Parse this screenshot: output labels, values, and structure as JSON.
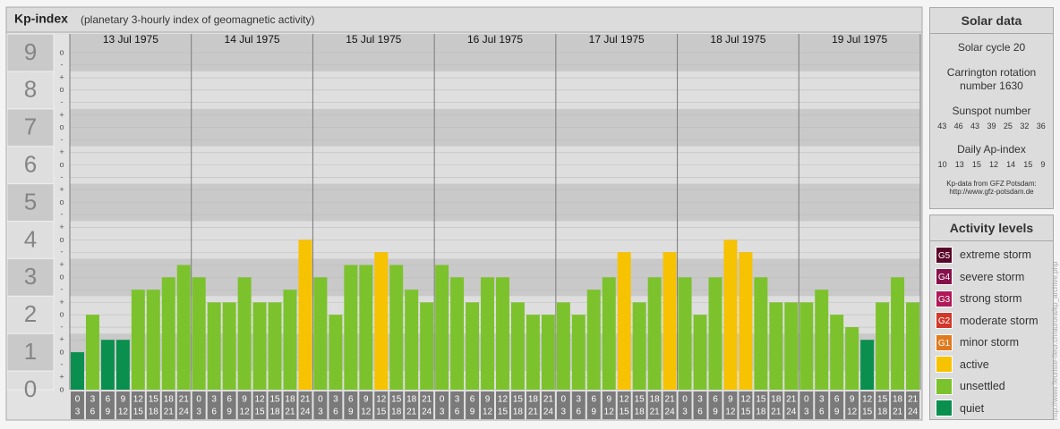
{
  "chart_data": {
    "type": "bar",
    "title": "Kp-index",
    "subtitle": "(planetary 3-hourly index of geomagnetic activity)",
    "days": [
      "13 Jul 1975",
      "14 Jul 1975",
      "15 Jul 1975",
      "16 Jul 1975",
      "17 Jul 1975",
      "18 Jul 1975",
      "19 Jul 1975"
    ],
    "time_slots": [
      {
        "from": "0",
        "to": "3"
      },
      {
        "from": "3",
        "to": "6"
      },
      {
        "from": "6",
        "to": "9"
      },
      {
        "from": "9",
        "to": "12"
      },
      {
        "from": "12",
        "to": "15"
      },
      {
        "from": "15",
        "to": "18"
      },
      {
        "from": "18",
        "to": "21"
      },
      {
        "from": "21",
        "to": "24"
      }
    ],
    "values": [
      1,
      2,
      1.33,
      1.33,
      2.67,
      2.67,
      3,
      3.33,
      3,
      2.33,
      2.33,
      3,
      2.33,
      2.33,
      2.67,
      4,
      3,
      2,
      3.33,
      3.33,
      3.67,
      3.33,
      2.67,
      2.33,
      3.33,
      3,
      2.33,
      3,
      3,
      2.33,
      2,
      2,
      2.33,
      2,
      2.67,
      3,
      3.67,
      2.33,
      3,
      3.67,
      3,
      2,
      3,
      4,
      3.67,
      3,
      2.33,
      2.33,
      2.33,
      2.67,
      2,
      1.67,
      1.33,
      2.33,
      3,
      2.33
    ],
    "colors": [
      "#0a8f4e",
      "#7cc22c",
      "#0a8f4e",
      "#0a8f4e",
      "#7cc22c",
      "#7cc22c",
      "#7cc22c",
      "#7cc22c",
      "#7cc22c",
      "#7cc22c",
      "#7cc22c",
      "#7cc22c",
      "#7cc22c",
      "#7cc22c",
      "#7cc22c",
      "#f7c200",
      "#7cc22c",
      "#7cc22c",
      "#7cc22c",
      "#7cc22c",
      "#f7c200",
      "#7cc22c",
      "#7cc22c",
      "#7cc22c",
      "#7cc22c",
      "#7cc22c",
      "#7cc22c",
      "#7cc22c",
      "#7cc22c",
      "#7cc22c",
      "#7cc22c",
      "#7cc22c",
      "#7cc22c",
      "#7cc22c",
      "#7cc22c",
      "#7cc22c",
      "#f7c200",
      "#7cc22c",
      "#7cc22c",
      "#f7c200",
      "#7cc22c",
      "#7cc22c",
      "#7cc22c",
      "#f7c200",
      "#f7c200",
      "#7cc22c",
      "#7cc22c",
      "#7cc22c",
      "#7cc22c",
      "#7cc22c",
      "#7cc22c",
      "#7cc22c",
      "#0a8f4e",
      "#7cc22c",
      "#7cc22c",
      "#7cc22c"
    ],
    "ylim": [
      0,
      9.5
    ],
    "yticks": [
      0,
      1,
      2,
      3,
      4,
      5,
      6,
      7,
      8,
      9
    ],
    "minor_yticks": [
      {
        "value": 0,
        "label": "o"
      },
      {
        "value": 0.33,
        "label": "+"
      },
      {
        "value": 0.67,
        "label": "-"
      },
      {
        "value": 1,
        "label": "o"
      },
      {
        "value": 1.33,
        "label": "+"
      },
      {
        "value": 1.67,
        "label": "-"
      },
      {
        "value": 2,
        "label": "o"
      },
      {
        "value": 2.33,
        "label": "+"
      },
      {
        "value": 2.67,
        "label": "-"
      },
      {
        "value": 3,
        "label": "o"
      },
      {
        "value": 3.33,
        "label": "+"
      },
      {
        "value": 3.67,
        "label": "-"
      },
      {
        "value": 4,
        "label": "o"
      },
      {
        "value": 4.33,
        "label": "+"
      },
      {
        "value": 4.67,
        "label": "-"
      },
      {
        "value": 5,
        "label": "o"
      },
      {
        "value": 5.33,
        "label": "+"
      },
      {
        "value": 5.67,
        "label": "-"
      },
      {
        "value": 6,
        "label": "o"
      },
      {
        "value": 6.33,
        "label": "+"
      },
      {
        "value": 6.67,
        "label": "-"
      },
      {
        "value": 7,
        "label": "o"
      },
      {
        "value": 7.33,
        "label": "+"
      },
      {
        "value": 7.67,
        "label": "-"
      },
      {
        "value": 8,
        "label": "o"
      },
      {
        "value": 8.33,
        "label": "+"
      },
      {
        "value": 8.67,
        "label": "-"
      },
      {
        "value": 9,
        "label": "o"
      }
    ],
    "grid": true
  },
  "solar_data": {
    "title": "Solar data",
    "cycle": "Solar cycle 20",
    "carrington": "Carrington rotation number 1630",
    "sunspot_title": "Sunspot number",
    "sunspot": [
      43,
      46,
      43,
      39,
      25,
      32,
      36
    ],
    "ap_title": "Daily Ap-index",
    "ap": [
      10,
      13,
      15,
      12,
      14,
      15,
      9
    ],
    "source": "Kp-data from GFZ Potsdam:",
    "source_url": "http://www.gfz-potsdam.de"
  },
  "activity_levels": {
    "title": "Activity levels",
    "levels": [
      {
        "code": "G5",
        "name": "extreme storm",
        "color": "#5a0628"
      },
      {
        "code": "G4",
        "name": "severe storm",
        "color": "#86104a"
      },
      {
        "code": "G3",
        "name": "strong storm",
        "color": "#b01858"
      },
      {
        "code": "G2",
        "name": "moderate storm",
        "color": "#d2382a"
      },
      {
        "code": "G1",
        "name": "minor storm",
        "color": "#e07a1e"
      },
      {
        "name": "active",
        "color": "#f7c200"
      },
      {
        "name": "unsettled",
        "color": "#7cc22c"
      },
      {
        "name": "quiet",
        "color": "#0a8f4e"
      }
    ]
  },
  "footer_url": "http://www.fleuriste-fleur.ch/aurora/kp_archive.php"
}
